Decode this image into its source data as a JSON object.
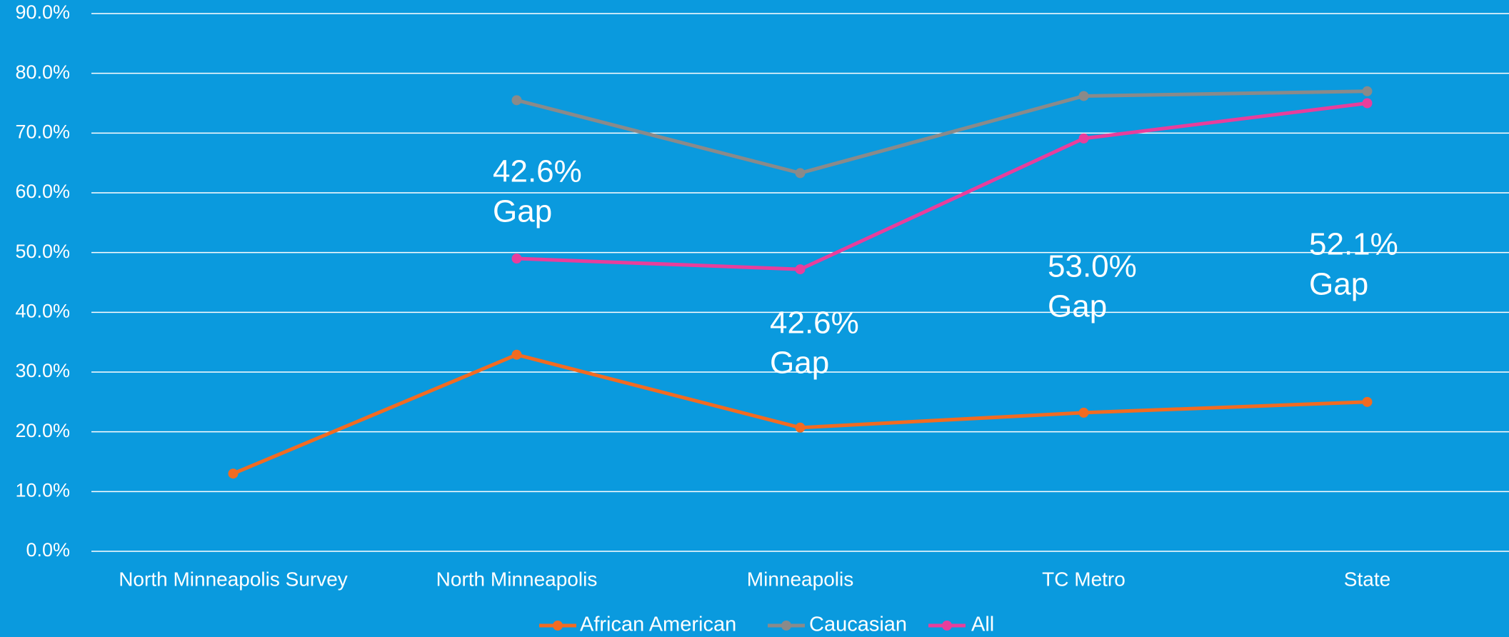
{
  "chart_data": {
    "type": "line",
    "categories": [
      "North Minneapolis Survey",
      "North Minneapolis",
      "Minneapolis",
      "TC Metro",
      "State"
    ],
    "series": [
      {
        "name": "African American",
        "color": "#f26b21",
        "values": [
          13.0,
          32.9,
          20.7,
          23.2,
          25.0
        ]
      },
      {
        "name": "Caucasian",
        "color": "#8a8a8a",
        "values": [
          null,
          75.5,
          63.3,
          76.2,
          77.0
        ]
      },
      {
        "name": "All",
        "color": "#e83e9c",
        "values": [
          null,
          49.0,
          47.2,
          69.1,
          75.0
        ]
      }
    ],
    "ylim": [
      0,
      90
    ],
    "yticks": [
      {
        "value": 0,
        "label": "0.0%"
      },
      {
        "value": 10,
        "label": "10.0%"
      },
      {
        "value": 20,
        "label": "20.0%"
      },
      {
        "value": 30,
        "label": "30.0%"
      },
      {
        "value": 40,
        "label": "40.0%"
      },
      {
        "value": 50,
        "label": "50.0%"
      },
      {
        "value": 60,
        "label": "60.0%"
      },
      {
        "value": 70,
        "label": "70.0%"
      },
      {
        "value": 80,
        "label": "80.0%"
      },
      {
        "value": 90,
        "label": "90.0%"
      }
    ],
    "grid": true,
    "legend": "bottom",
    "annotations": [
      {
        "lines": [
          "42.6%",
          "Gap"
        ]
      },
      {
        "lines": [
          "42.6%",
          "Gap"
        ]
      },
      {
        "lines": [
          "53.0%",
          "Gap"
        ]
      },
      {
        "lines": [
          "52.1%",
          "Gap"
        ]
      }
    ]
  }
}
